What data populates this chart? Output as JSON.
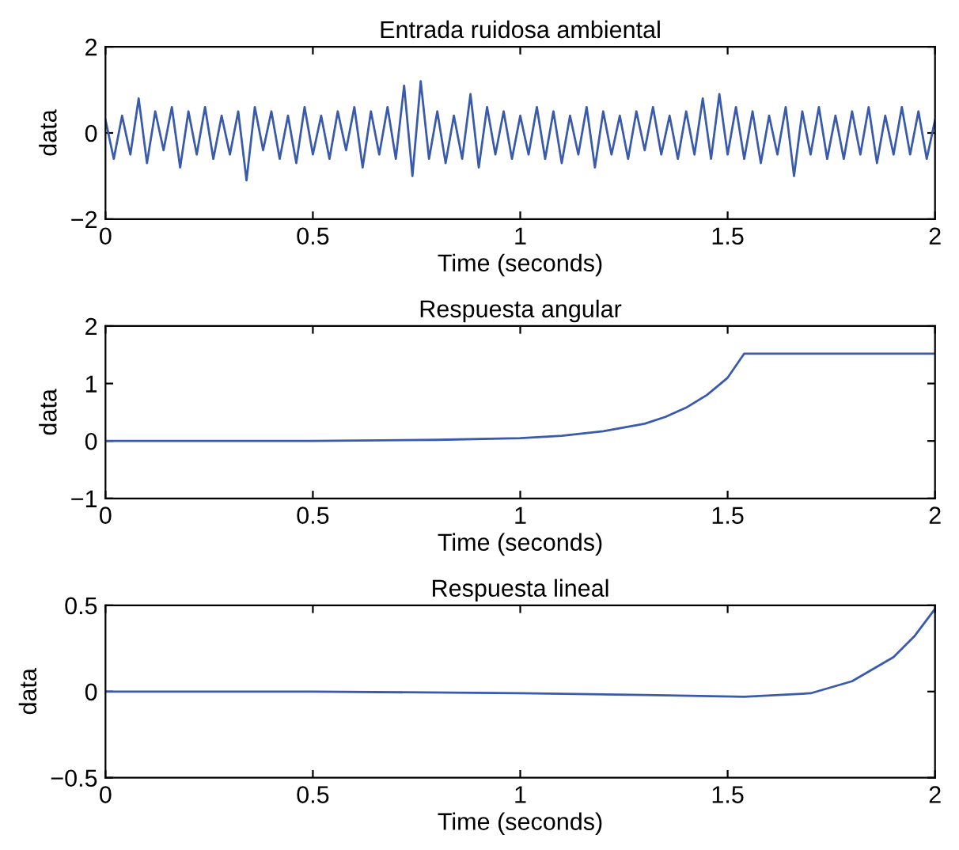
{
  "chart_data": [
    {
      "type": "line",
      "title": "Entrada ruidosa ambiental",
      "xlabel": "Time (seconds)",
      "ylabel": "data",
      "xlim": [
        0,
        2
      ],
      "ylim": [
        -2,
        2
      ],
      "xticks": [
        0,
        0.5,
        1,
        1.5,
        2
      ],
      "yticks": [
        {
          "value": -2,
          "label": "−2"
        },
        0,
        2
      ],
      "grid": false,
      "legend": false,
      "series": [
        {
          "color": "#3a5bab",
          "x": [
            0,
            0.02,
            0.04,
            0.06,
            0.08,
            0.1,
            0.12,
            0.14,
            0.16,
            0.18,
            0.2,
            0.22,
            0.24,
            0.26,
            0.28,
            0.3,
            0.32,
            0.34,
            0.36,
            0.38,
            0.4,
            0.42,
            0.44,
            0.46,
            0.48,
            0.5,
            0.52,
            0.54,
            0.56,
            0.58,
            0.6,
            0.62,
            0.64,
            0.66,
            0.68,
            0.7,
            0.72,
            0.74,
            0.76,
            0.78,
            0.8,
            0.82,
            0.84,
            0.86,
            0.88,
            0.9,
            0.92,
            0.94,
            0.96,
            0.98,
            1,
            1.02,
            1.04,
            1.06,
            1.08,
            1.1,
            1.12,
            1.14,
            1.16,
            1.18,
            1.2,
            1.22,
            1.24,
            1.26,
            1.28,
            1.3,
            1.32,
            1.34,
            1.36,
            1.38,
            1.4,
            1.42,
            1.44,
            1.46,
            1.48,
            1.5,
            1.52,
            1.54,
            1.56,
            1.58,
            1.6,
            1.62,
            1.64,
            1.66,
            1.68,
            1.7,
            1.72,
            1.74,
            1.76,
            1.78,
            1.8,
            1.82,
            1.84,
            1.86,
            1.88,
            1.9,
            1.92,
            1.94,
            1.96,
            1.98,
            2
          ],
          "values": [
            0.3,
            -0.6,
            0.4,
            -0.5,
            0.8,
            -0.7,
            0.5,
            -0.4,
            0.6,
            -0.8,
            0.5,
            -0.5,
            0.6,
            -0.6,
            0.4,
            -0.5,
            0.5,
            -1.1,
            0.6,
            -0.4,
            0.5,
            -0.6,
            0.4,
            -0.7,
            0.6,
            -0.5,
            0.4,
            -0.6,
            0.5,
            -0.4,
            0.6,
            -0.8,
            0.5,
            -0.5,
            0.6,
            -0.6,
            1.1,
            -1.0,
            1.2,
            -0.6,
            0.5,
            -0.7,
            0.4,
            -0.6,
            0.9,
            -0.8,
            0.6,
            -0.5,
            0.5,
            -0.6,
            0.4,
            -0.5,
            0.6,
            -0.6,
            0.5,
            -0.7,
            0.4,
            -0.5,
            0.6,
            -0.8,
            0.5,
            -0.5,
            0.4,
            -0.6,
            0.5,
            -0.4,
            0.6,
            -0.5,
            0.4,
            -0.6,
            0.5,
            -0.5,
            0.8,
            -0.6,
            0.9,
            -0.5,
            0.6,
            -0.6,
            0.5,
            -0.7,
            0.4,
            -0.5,
            0.6,
            -1.0,
            0.5,
            -0.5,
            0.6,
            -0.6,
            0.4,
            -0.6,
            0.5,
            -0.5,
            0.6,
            -0.7,
            0.4,
            -0.5,
            0.6,
            -0.5,
            0.5,
            -0.6,
            0.3
          ]
        }
      ]
    },
    {
      "type": "line",
      "title": "Respuesta angular",
      "xlabel": "Time (seconds)",
      "ylabel": "data",
      "xlim": [
        0,
        2
      ],
      "ylim": [
        -1,
        2
      ],
      "xticks": [
        0,
        0.5,
        1,
        1.5,
        2
      ],
      "yticks": [
        {
          "value": -1,
          "label": "−1"
        },
        0,
        1,
        2
      ],
      "grid": false,
      "legend": false,
      "series": [
        {
          "color": "#3a5bab",
          "x": [
            0,
            0.5,
            0.8,
            1.0,
            1.1,
            1.2,
            1.3,
            1.35,
            1.4,
            1.45,
            1.5,
            1.54,
            2
          ],
          "values": [
            0,
            0,
            0.02,
            0.05,
            0.09,
            0.17,
            0.3,
            0.42,
            0.58,
            0.8,
            1.1,
            1.52,
            1.52
          ]
        }
      ]
    },
    {
      "type": "line",
      "title": "Respuesta lineal",
      "xlabel": "Time (seconds)",
      "ylabel": "data",
      "xlim": [
        0,
        2
      ],
      "ylim": [
        -0.5,
        0.5
      ],
      "xticks": [
        0,
        0.5,
        1,
        1.5,
        2
      ],
      "yticks": [
        {
          "value": -0.5,
          "label": "−0.5"
        },
        0,
        0.5
      ],
      "grid": false,
      "legend": false,
      "series": [
        {
          "color": "#3a5bab",
          "x": [
            0,
            0.5,
            1,
            1.3,
            1.54,
            1.7,
            1.8,
            1.9,
            1.95,
            2
          ],
          "values": [
            0,
            0,
            -0.01,
            -0.02,
            -0.03,
            -0.01,
            0.06,
            0.2,
            0.32,
            0.48
          ]
        }
      ]
    }
  ]
}
